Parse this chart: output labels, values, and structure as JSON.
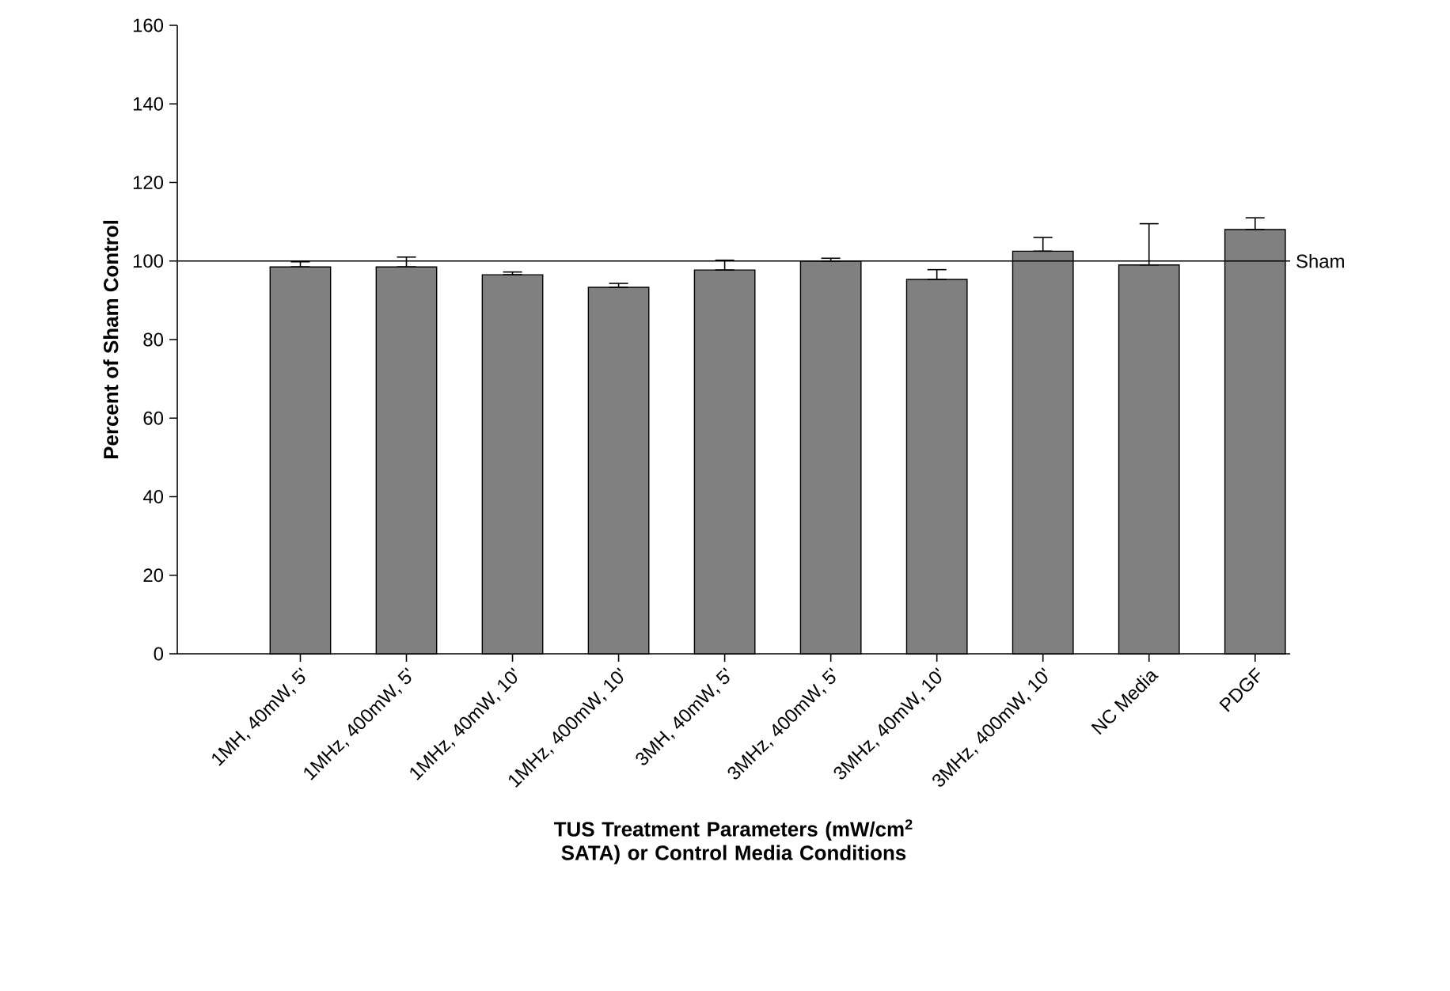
{
  "chart_data": {
    "type": "bar",
    "xlabel": "TUS Treatment Parameters (mW/cm$^{2}$ SATA) or Control Media Conditions",
    "ylabel": "Percent of Sham Control",
    "categories": [
      "1MH, 40mW, 5'",
      "1MHz, 400mW, 5'",
      "1MHz, 40mW, 10'",
      "1MHz, 400mW, 10'",
      "3MH, 40mW, 5'",
      "3MHz, 400mW, 5'",
      "3MHz, 40mW, 10'",
      "3MHz, 400mW, 10'",
      "NC Media",
      "PDGF"
    ],
    "values": [
      98.5,
      98.5,
      96.5,
      93.3,
      97.7,
      100,
      95.3,
      102.5,
      99,
      108
    ],
    "errors": [
      [
        98.5,
        99.8
      ],
      [
        98.5,
        101
      ],
      [
        96.5,
        97.2
      ],
      [
        93.3,
        94.3
      ],
      [
        97.7,
        100.2
      ],
      [
        100,
        100.7
      ],
      [
        95.3,
        97.8
      ],
      [
        102.5,
        106
      ],
      [
        99,
        109.5
      ],
      [
        108,
        111
      ]
    ],
    "color": "#808080",
    "ylim": [
      0,
      160
    ],
    "yticks": [
      0,
      20,
      40,
      60,
      80,
      100,
      120,
      140,
      160
    ],
    "ref_lines": [
      {
        "axis": "y",
        "value": 100,
        "label": "Sham"
      }
    ]
  }
}
